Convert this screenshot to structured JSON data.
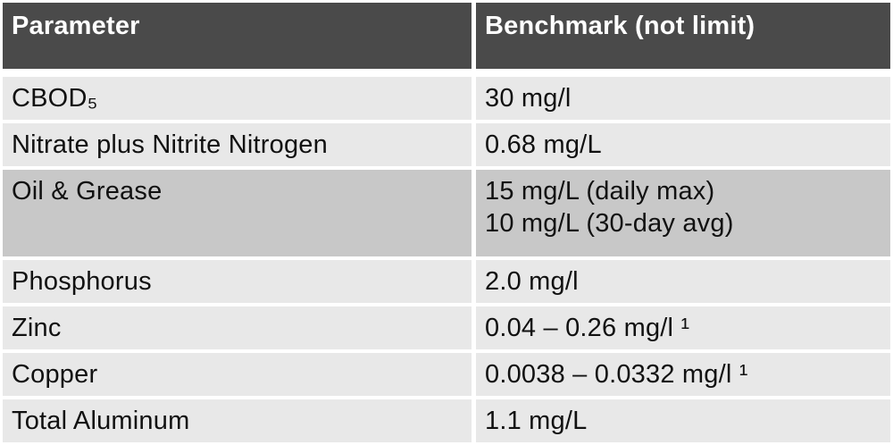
{
  "table": {
    "colors": {
      "header_bg": "#4a4a4a",
      "header_text": "#ffffff",
      "row_light": "#e8e8e8",
      "row_dark": "#c8c8c8",
      "gap": "#ffffff",
      "text": "#111111"
    },
    "headers": [
      {
        "label": "Parameter"
      },
      {
        "label": "Benchmark (not limit)"
      }
    ],
    "rows": [
      {
        "parameter": "CBOD₅",
        "benchmark": [
          "30 mg/l"
        ],
        "shade": "light"
      },
      {
        "parameter": "Nitrate plus Nitrite Nitrogen",
        "benchmark": [
          "0.68 mg/L"
        ],
        "shade": "light"
      },
      {
        "parameter": "Oil & Grease",
        "benchmark": [
          "15 mg/L (daily max)",
          "10 mg/L (30-day avg)"
        ],
        "shade": "dark"
      },
      {
        "parameter": "Phosphorus",
        "benchmark": [
          "2.0 mg/l"
        ],
        "shade": "light"
      },
      {
        "parameter": "Zinc",
        "benchmark": [
          "0.04 – 0.26 mg/l ¹"
        ],
        "shade": "light"
      },
      {
        "parameter": "Copper",
        "benchmark": [
          "0.0038 – 0.0332 mg/l ¹"
        ],
        "shade": "light"
      },
      {
        "parameter": "Total Aluminum",
        "benchmark": [
          "1.1 mg/L"
        ],
        "shade": "light"
      }
    ]
  }
}
